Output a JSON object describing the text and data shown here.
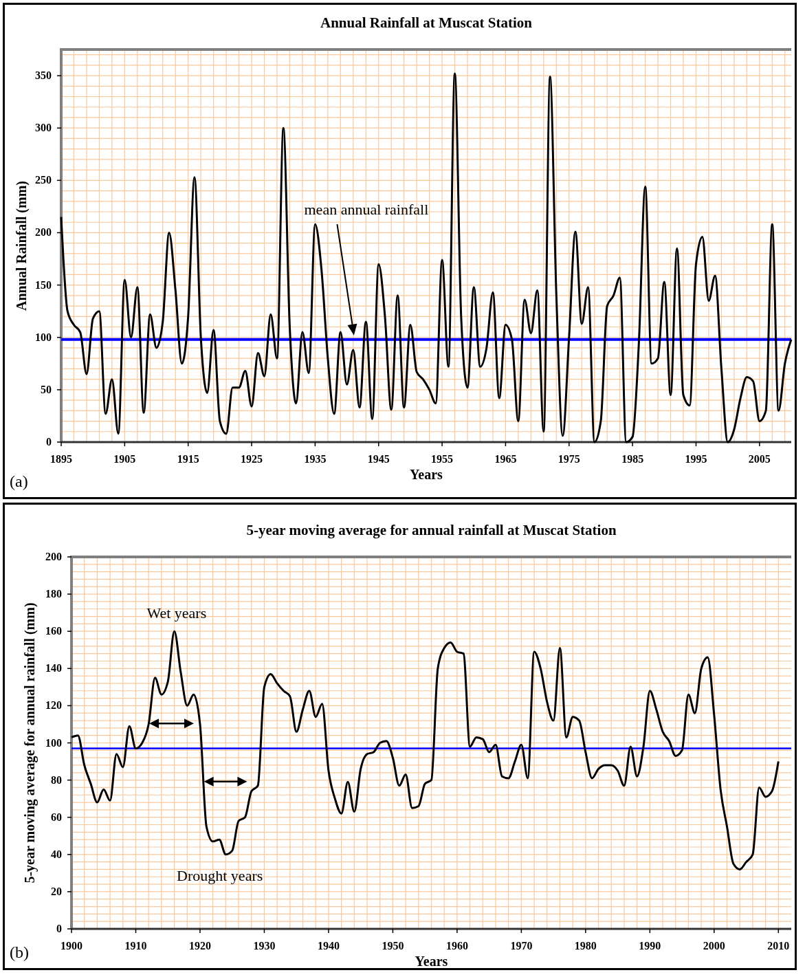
{
  "chart_data": [
    {
      "type": "line",
      "title": "Annual Rainfall at Muscat Station",
      "xlabel": "Years",
      "ylabel": "Annual Rainfall (mm)",
      "x": [
        1895,
        1896,
        1897,
        1898,
        1899,
        1900,
        1901,
        1902,
        1903,
        1904,
        1905,
        1906,
        1907,
        1908,
        1909,
        1910,
        1911,
        1912,
        1913,
        1914,
        1915,
        1916,
        1917,
        1918,
        1919,
        1920,
        1921,
        1922,
        1923,
        1924,
        1925,
        1926,
        1927,
        1928,
        1929,
        1930,
        1931,
        1932,
        1933,
        1934,
        1935,
        1936,
        1937,
        1938,
        1939,
        1940,
        1941,
        1942,
        1943,
        1944,
        1945,
        1946,
        1947,
        1948,
        1949,
        1950,
        1951,
        1952,
        1953,
        1954,
        1955,
        1956,
        1957,
        1958,
        1959,
        1960,
        1961,
        1962,
        1963,
        1964,
        1965,
        1966,
        1967,
        1968,
        1969,
        1970,
        1971,
        1972,
        1973,
        1974,
        1975,
        1976,
        1977,
        1978,
        1979,
        1980,
        1981,
        1982,
        1983,
        1984,
        1985,
        1986,
        1987,
        1988,
        1989,
        1990,
        1991,
        1992,
        1993,
        1994,
        1995,
        1996,
        1997,
        1998,
        1999,
        2000,
        2001,
        2002,
        2003,
        2004,
        2005,
        2006,
        2007,
        2008,
        2009,
        2010
      ],
      "series": [
        {
          "color": "#000000",
          "values": [
            215,
            125,
            112,
            105,
            65,
            118,
            125,
            27,
            60,
            8,
            155,
            100,
            148,
            28,
            122,
            90,
            115,
            200,
            145,
            75,
            120,
            253,
            100,
            47,
            107,
            20,
            8,
            52,
            52,
            68,
            34,
            85,
            63,
            122,
            80,
            300,
            110,
            37,
            105,
            66,
            208,
            165,
            80,
            27,
            105,
            55,
            88,
            33,
            115,
            22,
            170,
            120,
            31,
            140,
            33,
            112,
            67,
            60,
            50,
            37,
            174,
            72,
            352,
            120,
            52,
            148,
            72,
            90,
            143,
            42,
            112,
            98,
            20,
            136,
            104,
            145,
            10,
            349,
            140,
            6,
            100,
            201,
            113,
            148,
            0,
            20,
            130,
            140,
            157,
            0,
            5,
            95,
            244,
            75,
            80,
            153,
            45,
            185,
            45,
            35,
            170,
            196,
            135,
            159,
            70,
            0,
            12,
            42,
            62,
            58,
            20,
            30,
            208,
            30,
            75,
            98
          ]
        }
      ],
      "xlim": [
        1895,
        2010
      ],
      "xticks": [
        1895,
        1905,
        1915,
        1925,
        1935,
        1945,
        1955,
        1965,
        1975,
        1985,
        1995,
        2005
      ],
      "ylim": [
        0,
        375
      ],
      "yticks": [
        0,
        50,
        100,
        150,
        200,
        250,
        300,
        350
      ],
      "grid": true,
      "ref_lines": [
        {
          "axis": "y",
          "value": 98,
          "color": "#0000ff"
        }
      ],
      "annotations": [
        "mean annual rainfall",
        "(a)"
      ]
    },
    {
      "type": "line",
      "title": "5-year moving average for annual rainfall at Muscat Station",
      "xlabel": "Years",
      "ylabel": "5-year moving average for annual rainfall (mm)",
      "x": [
        1900,
        1901,
        1902,
        1903,
        1904,
        1905,
        1906,
        1907,
        1908,
        1909,
        1910,
        1911,
        1912,
        1913,
        1914,
        1915,
        1916,
        1917,
        1918,
        1919,
        1920,
        1921,
        1922,
        1923,
        1924,
        1925,
        1926,
        1927,
        1928,
        1929,
        1930,
        1931,
        1932,
        1933,
        1934,
        1935,
        1936,
        1937,
        1938,
        1939,
        1940,
        1941,
        1942,
        1943,
        1944,
        1945,
        1946,
        1947,
        1948,
        1949,
        1950,
        1951,
        1952,
        1953,
        1954,
        1955,
        1956,
        1957,
        1958,
        1959,
        1960,
        1961,
        1962,
        1963,
        1964,
        1965,
        1966,
        1967,
        1968,
        1969,
        1970,
        1971,
        1972,
        1973,
        1974,
        1975,
        1976,
        1977,
        1978,
        1979,
        1980,
        1981,
        1982,
        1983,
        1984,
        1985,
        1986,
        1987,
        1988,
        1989,
        1990,
        1991,
        1992,
        1993,
        1994,
        1995,
        1996,
        1997,
        1998,
        1999,
        2000,
        2001,
        2002,
        2003,
        2004,
        2005,
        2006,
        2007,
        2008,
        2009,
        2010
      ],
      "series": [
        {
          "color": "#000000",
          "values": [
            103,
            104,
            88,
            78,
            68,
            75,
            69,
            94,
            87,
            109,
            97,
            100,
            110,
            135,
            126,
            133,
            160,
            138,
            120,
            126,
            110,
            55,
            47,
            48,
            40,
            42,
            58,
            60,
            74,
            77,
            130,
            137,
            132,
            128,
            125,
            106,
            118,
            128,
            114,
            121,
            85,
            70,
            62,
            79,
            63,
            86,
            94,
            95,
            100,
            101,
            92,
            77,
            83,
            65,
            66,
            78,
            80,
            140,
            151,
            154,
            149,
            148,
            98,
            103,
            102,
            95,
            99,
            82,
            81,
            90,
            99,
            81,
            149,
            140,
            122,
            112,
            151,
            103,
            114,
            112,
            95,
            81,
            86,
            88,
            88,
            85,
            77,
            98,
            82,
            98,
            128,
            118,
            106,
            101,
            93,
            96,
            126,
            116,
            140,
            146,
            115,
            75,
            55,
            35,
            32,
            36,
            40,
            76,
            71,
            74,
            90
          ]
        }
      ],
      "xlim": [
        1900,
        2012
      ],
      "xticks": [
        1900,
        1910,
        1920,
        1930,
        1940,
        1950,
        1960,
        1970,
        1980,
        1990,
        2000,
        2010
      ],
      "ylim": [
        0,
        200
      ],
      "yticks": [
        0,
        20,
        40,
        60,
        80,
        100,
        120,
        140,
        160,
        180,
        200
      ],
      "grid": true,
      "ref_lines": [
        {
          "axis": "y",
          "value": 97,
          "color": "#0000ff"
        }
      ],
      "annotations": [
        "Wet years",
        "Drought years",
        "(b)"
      ]
    }
  ]
}
